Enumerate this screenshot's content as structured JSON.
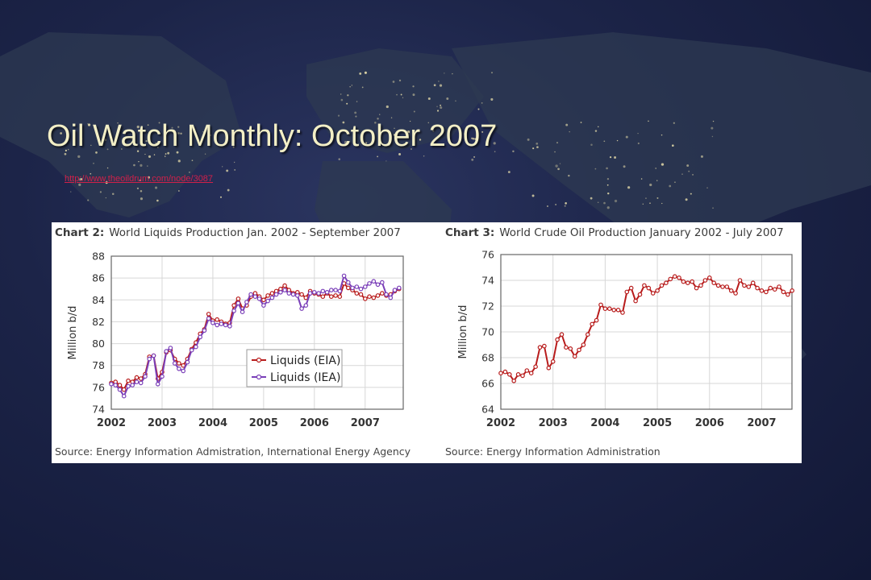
{
  "slide": {
    "title": "Oil Watch Monthly: October 2007",
    "link": "http://www.theoildrum.com/node/3087"
  },
  "colors": {
    "eia": "#b81c1c",
    "iea": "#7a3fb8",
    "title_text": "#f3efc6",
    "link_text": "#d0204a"
  },
  "chart_data": [
    {
      "type": "line",
      "heading_bold": "Chart 2:",
      "heading": "World Liquids Production Jan. 2002 - September 2007",
      "ylabel": "Million b/d",
      "ylim": [
        74,
        88
      ],
      "yticks": [
        74,
        76,
        78,
        80,
        82,
        84,
        86,
        88
      ],
      "xlim": [
        2002,
        2007.75
      ],
      "xticks": [
        "2002",
        "2003",
        "2004",
        "2005",
        "2006",
        "2007"
      ],
      "grid": true,
      "legend": "center",
      "source": "Source:  Energy Information Admistration, International Energy Agency",
      "series": [
        {
          "name": "Liquids (EIA)",
          "color": "#b81c1c",
          "x_start": 2002,
          "x_step": 0.0833333,
          "values": [
            76.4,
            76.5,
            76.2,
            75.8,
            76.6,
            76.5,
            76.9,
            76.8,
            77.2,
            78.8,
            78.9,
            76.8,
            77.4,
            79.2,
            79.4,
            78.6,
            78.2,
            78.0,
            78.6,
            79.5,
            80.1,
            80.9,
            81.3,
            82.7,
            82.1,
            82.2,
            82.0,
            81.8,
            81.9,
            83.5,
            84.1,
            83.2,
            83.5,
            84.3,
            84.6,
            84.3,
            84.0,
            84.4,
            84.6,
            84.8,
            85.0,
            85.3,
            84.9,
            84.6,
            84.7,
            84.5,
            84.2,
            84.8,
            84.6,
            84.5,
            84.3,
            84.6,
            84.3,
            84.4,
            84.3,
            85.5,
            85.1,
            84.9,
            84.6,
            84.5,
            84.1,
            84.3,
            84.2,
            84.4,
            84.6,
            84.4,
            84.5,
            84.8,
            85.0
          ]
        },
        {
          "name": "Liquids (IEA)",
          "color": "#7a3fb8",
          "x_start": 2002,
          "x_step": 0.0833333,
          "values": [
            76.3,
            76.2,
            75.8,
            75.2,
            76.1,
            76.2,
            76.5,
            76.4,
            77.0,
            78.6,
            78.9,
            76.3,
            77.0,
            79.3,
            79.6,
            78.2,
            77.7,
            77.5,
            78.3,
            79.4,
            79.7,
            80.6,
            81.2,
            82.3,
            81.9,
            81.7,
            81.8,
            81.7,
            81.6,
            83.0,
            83.7,
            82.9,
            83.8,
            84.5,
            84.3,
            84.1,
            83.5,
            83.9,
            84.2,
            84.5,
            84.7,
            84.9,
            84.6,
            84.5,
            84.4,
            83.2,
            83.5,
            84.6,
            84.7,
            84.6,
            84.8,
            84.7,
            84.9,
            84.9,
            84.8,
            86.2,
            85.6,
            85.1,
            85.2,
            85.0,
            85.2,
            85.5,
            85.7,
            85.4,
            85.6,
            84.5,
            84.2,
            84.9,
            85.1
          ]
        }
      ]
    },
    {
      "type": "line",
      "heading_bold": "Chart 3:",
      "heading": "World Crude Oil Production January 2002 - July 2007",
      "ylabel": "Million b/d",
      "ylim": [
        64,
        76
      ],
      "yticks": [
        64,
        66,
        68,
        70,
        72,
        74,
        76
      ],
      "xlim": [
        2002,
        2007.58
      ],
      "xticks": [
        "2002",
        "2003",
        "2004",
        "2005",
        "2006",
        "2007"
      ],
      "grid": true,
      "source": "Source: Energy Information Administration",
      "series": [
        {
          "color": "#b81c1c",
          "x_start": 2002,
          "x_step": 0.0833333,
          "values": [
            66.8,
            66.9,
            66.7,
            66.2,
            66.7,
            66.6,
            67.0,
            66.8,
            67.3,
            68.8,
            68.9,
            67.2,
            67.7,
            69.4,
            69.8,
            68.8,
            68.7,
            68.1,
            68.6,
            69.0,
            69.8,
            70.6,
            70.9,
            72.1,
            71.8,
            71.8,
            71.7,
            71.7,
            71.5,
            73.1,
            73.4,
            72.4,
            72.9,
            73.6,
            73.4,
            73.0,
            73.2,
            73.6,
            73.8,
            74.1,
            74.3,
            74.2,
            73.9,
            73.8,
            73.9,
            73.4,
            73.6,
            74.0,
            74.2,
            73.8,
            73.6,
            73.5,
            73.5,
            73.2,
            73.0,
            74.0,
            73.6,
            73.5,
            73.8,
            73.4,
            73.2,
            73.1,
            73.4,
            73.3,
            73.5,
            73.1,
            72.9,
            73.2
          ]
        }
      ]
    }
  ]
}
